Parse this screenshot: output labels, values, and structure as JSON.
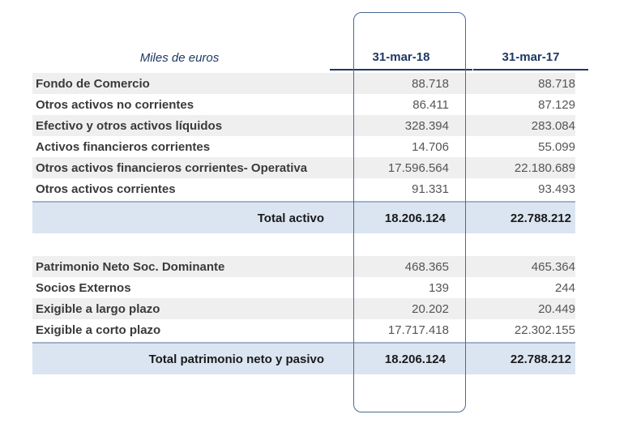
{
  "header": {
    "units": "Miles de euros",
    "col1": "31-mar-18",
    "col2": "31-mar-17"
  },
  "assets": [
    {
      "label": "Fondo de Comercio",
      "v1": "88.718",
      "v2": "88.718"
    },
    {
      "label": "Otros activos no corrientes",
      "v1": "86.411",
      "v2": "87.129"
    },
    {
      "label": "Efectivo y otros activos líquidos",
      "v1": "328.394",
      "v2": "283.084"
    },
    {
      "label": "Activos financieros corrientes",
      "v1": "14.706",
      "v2": "55.099"
    },
    {
      "label": "Otros activos financieros corrientes- Operativa",
      "v1": "17.596.564",
      "v2": "22.180.689"
    },
    {
      "label": "Otros activos corrientes",
      "v1": "91.331",
      "v2": "93.493"
    }
  ],
  "total_assets": {
    "label": "Total activo",
    "v1": "18.206.124",
    "v2": "22.788.212"
  },
  "liabilities": [
    {
      "label": "Patrimonio Neto Soc. Dominante",
      "v1": "468.365",
      "v2": "465.364"
    },
    {
      "label": "Socios Externos",
      "v1": "139",
      "v2": "244"
    },
    {
      "label": "Exigible a largo plazo",
      "v1": "20.202",
      "v2": "20.449"
    },
    {
      "label": "Exigible a corto plazo",
      "v1": "17.717.418",
      "v2": "22.302.155"
    }
  ],
  "total_liabilities": {
    "label": "Total patrimonio neto y pasivo",
    "v1": "18.206.124",
    "v2": "22.788.212"
  }
}
